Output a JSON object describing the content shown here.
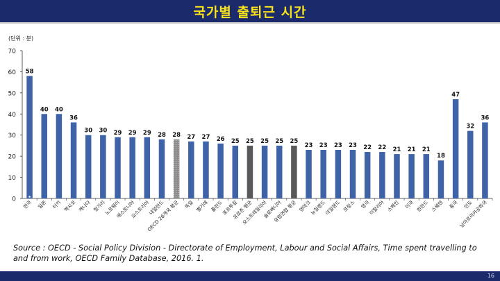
{
  "slide": {
    "title": "국가별 출퇴근 시간",
    "page_number": "16",
    "source": "Source : OECD - Social Policy Division - Directorate of Employment, Labour and Social Affairs,  Time spent travelling to and from work,  OECD Family Database, 2016. 1."
  },
  "colors": {
    "title_bar": "#1b2a6b",
    "title_text": "#f7e21b",
    "bar": "#3f63a7",
    "bar_highlight": "#595959"
  },
  "chart_data": {
    "type": "bar",
    "unit_label": "(단위 : 분)",
    "ylim": [
      0,
      70
    ],
    "yticks": [
      0,
      10,
      20,
      30,
      40,
      50,
      60,
      70
    ],
    "grid": false,
    "categories": [
      "한국",
      "일본",
      "터키",
      "멕시코",
      "캐나다",
      "헝가리",
      "노르웨이",
      "에스토니아",
      "오스트리아",
      "네덜란드",
      "OECD 26개국 평균",
      "독일",
      "벨기에",
      "폴란드",
      "포르투갈",
      "유로존 평균",
      "오스트레일리아",
      "슬로베니아",
      "유럽연합 평균",
      "덴마크",
      "뉴질랜드",
      "아일랜드",
      "프랑스",
      "영국",
      "이탈리아",
      "스페인",
      "미국",
      "핀란드",
      "스웨덴",
      "중국",
      "인도",
      "남아프리카공화국"
    ],
    "values": [
      58,
      40,
      40,
      36,
      30,
      30,
      29,
      29,
      29,
      28,
      28,
      27,
      27,
      26,
      25,
      25,
      25,
      25,
      25,
      23,
      23,
      23,
      23,
      22,
      22,
      21,
      21,
      21,
      18,
      47,
      32,
      36
    ],
    "highlight_categories": [
      "OECD 26개국 평균",
      "유로존 평균",
      "유럽연합 평균"
    ],
    "hatched_categories": [
      "OECD 26개국 평균"
    ]
  }
}
